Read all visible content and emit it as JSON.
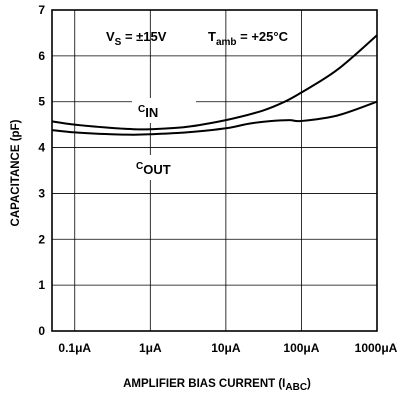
{
  "chart_data": {
    "type": "line",
    "xscale": "log",
    "xlim": [
      0.05,
      1000
    ],
    "ylim": [
      0,
      7
    ],
    "xticks": [
      0.1,
      1,
      10,
      100,
      1000
    ],
    "x_tick_labels": [
      "0.1μA",
      "1μA",
      "10μA",
      "100μA",
      "1000μA"
    ],
    "yticks": [
      0,
      1,
      2,
      3,
      4,
      5,
      6,
      7
    ],
    "y_tick_labels": [
      "0",
      "1",
      "2",
      "3",
      "4",
      "5",
      "6",
      "7"
    ],
    "grid": true,
    "ylabel": "CAPACITANCE (pF)",
    "xlabel": {
      "main": "AMPLIFIER BIAS CURRENT (I",
      "sub": "ABC",
      "close": ")"
    },
    "conditions": {
      "vs_main": "V",
      "vs_sub": "S",
      "vs_value": " = ±15V",
      "tamb_main": "T",
      "tamb_sub": "amb",
      "tamb_value": " = +25°C"
    },
    "series": [
      {
        "name": "CIN",
        "label_prefix": "C",
        "label_sub": "IN",
        "x": [
          0.05,
          0.1,
          0.3,
          0.6,
          1,
          3,
          10,
          30,
          60,
          100,
          300,
          1000
        ],
        "y": [
          4.57,
          4.5,
          4.43,
          4.4,
          4.4,
          4.45,
          4.6,
          4.8,
          5.0,
          5.2,
          5.7,
          6.45
        ]
      },
      {
        "name": "COUT",
        "label_prefix": "C",
        "label_sub": "OUT",
        "x": [
          0.05,
          0.1,
          0.3,
          0.6,
          1,
          3,
          10,
          20,
          40,
          70,
          100,
          300,
          1000
        ],
        "y": [
          4.38,
          4.33,
          4.29,
          4.28,
          4.29,
          4.33,
          4.42,
          4.52,
          4.58,
          4.6,
          4.58,
          4.7,
          5.0
        ]
      }
    ]
  }
}
